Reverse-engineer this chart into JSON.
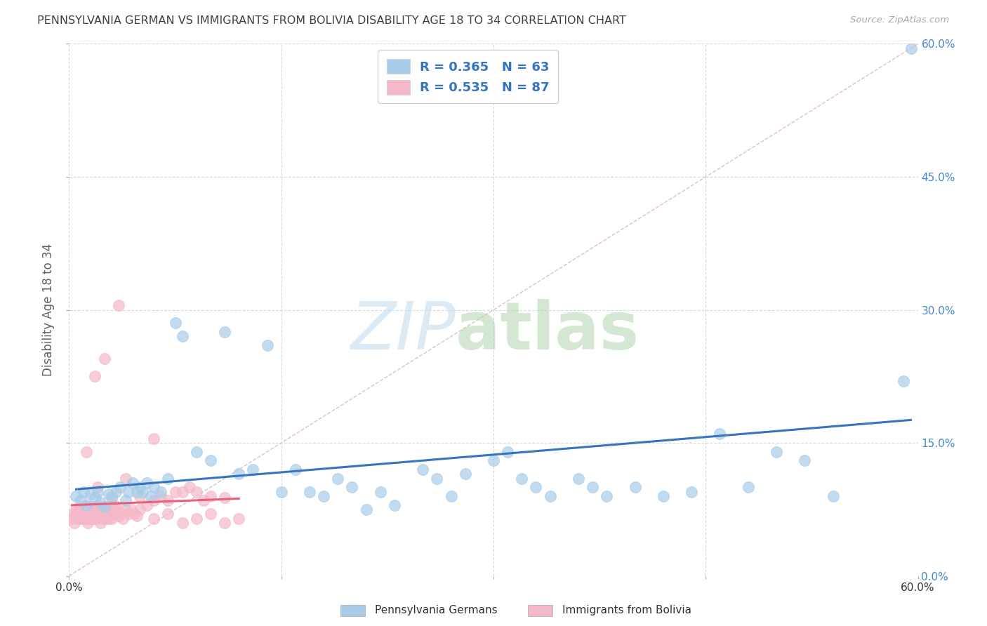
{
  "title": "PENNSYLVANIA GERMAN VS IMMIGRANTS FROM BOLIVIA DISABILITY AGE 18 TO 34 CORRELATION CHART",
  "source": "Source: ZipAtlas.com",
  "ylabel": "Disability Age 18 to 34",
  "xlim": [
    0.0,
    0.6
  ],
  "ylim": [
    0.0,
    0.6
  ],
  "xticks": [
    0.0,
    0.15,
    0.3,
    0.45,
    0.6
  ],
  "yticks": [
    0.0,
    0.15,
    0.3,
    0.45,
    0.6
  ],
  "blue_R": "0.365",
  "blue_N": "63",
  "pink_R": "0.535",
  "pink_N": "87",
  "blue_marker_color": "#a8cce8",
  "pink_marker_color": "#f5b8c8",
  "blue_line_color": "#3575c0",
  "pink_line_color": "#e8607a",
  "diagonal_color": "#e0c0c8",
  "legend_text_color": "#3575c0",
  "legend_label_blue": "Pennsylvania Germans",
  "legend_label_pink": "Immigrants from Bolivia",
  "background_color": "#ffffff",
  "grid_color": "#d8d8e0",
  "title_color": "#404040",
  "axis_label_color": "#606060",
  "right_tick_color": "#4488cc",
  "bottom_tick_color": "#333333",
  "blue_scatter_x": [
    0.005,
    0.008,
    0.01,
    0.012,
    0.015,
    0.018,
    0.02,
    0.022,
    0.025,
    0.028,
    0.03,
    0.033,
    0.036,
    0.04,
    0.042,
    0.045,
    0.048,
    0.05,
    0.052,
    0.055,
    0.058,
    0.06,
    0.065,
    0.07,
    0.075,
    0.08,
    0.09,
    0.1,
    0.11,
    0.12,
    0.13,
    0.14,
    0.15,
    0.16,
    0.17,
    0.18,
    0.19,
    0.2,
    0.21,
    0.22,
    0.23,
    0.25,
    0.26,
    0.27,
    0.28,
    0.3,
    0.31,
    0.32,
    0.33,
    0.34,
    0.36,
    0.37,
    0.38,
    0.4,
    0.42,
    0.44,
    0.46,
    0.48,
    0.5,
    0.52,
    0.54,
    0.59,
    0.595
  ],
  "blue_scatter_y": [
    0.09,
    0.085,
    0.095,
    0.08,
    0.092,
    0.088,
    0.095,
    0.083,
    0.078,
    0.092,
    0.088,
    0.095,
    0.1,
    0.085,
    0.095,
    0.105,
    0.095,
    0.1,
    0.095,
    0.105,
    0.09,
    0.1,
    0.095,
    0.11,
    0.285,
    0.27,
    0.14,
    0.13,
    0.275,
    0.115,
    0.12,
    0.26,
    0.095,
    0.12,
    0.095,
    0.09,
    0.11,
    0.1,
    0.075,
    0.095,
    0.08,
    0.12,
    0.11,
    0.09,
    0.115,
    0.13,
    0.14,
    0.11,
    0.1,
    0.09,
    0.11,
    0.1,
    0.09,
    0.1,
    0.09,
    0.095,
    0.16,
    0.1,
    0.14,
    0.13,
    0.09,
    0.22,
    0.595
  ],
  "pink_scatter_x": [
    0.002,
    0.003,
    0.004,
    0.005,
    0.005,
    0.006,
    0.006,
    0.007,
    0.007,
    0.008,
    0.008,
    0.009,
    0.01,
    0.01,
    0.011,
    0.011,
    0.012,
    0.012,
    0.013,
    0.013,
    0.014,
    0.014,
    0.015,
    0.015,
    0.016,
    0.016,
    0.017,
    0.017,
    0.018,
    0.018,
    0.019,
    0.02,
    0.02,
    0.021,
    0.022,
    0.022,
    0.023,
    0.024,
    0.024,
    0.025,
    0.025,
    0.026,
    0.026,
    0.027,
    0.027,
    0.028,
    0.03,
    0.03,
    0.032,
    0.032,
    0.034,
    0.035,
    0.036,
    0.038,
    0.04,
    0.042,
    0.044,
    0.046,
    0.048,
    0.05,
    0.055,
    0.06,
    0.065,
    0.07,
    0.075,
    0.08,
    0.085,
    0.09,
    0.095,
    0.1,
    0.11,
    0.012,
    0.018,
    0.025,
    0.035,
    0.02,
    0.03,
    0.04,
    0.05,
    0.06,
    0.07,
    0.08,
    0.09,
    0.1,
    0.11,
    0.12,
    0.06
  ],
  "pink_scatter_y": [
    0.065,
    0.07,
    0.06,
    0.075,
    0.068,
    0.072,
    0.065,
    0.078,
    0.07,
    0.065,
    0.075,
    0.068,
    0.072,
    0.065,
    0.078,
    0.07,
    0.065,
    0.075,
    0.06,
    0.078,
    0.068,
    0.072,
    0.065,
    0.078,
    0.07,
    0.065,
    0.075,
    0.068,
    0.072,
    0.065,
    0.078,
    0.07,
    0.065,
    0.075,
    0.06,
    0.078,
    0.068,
    0.072,
    0.065,
    0.078,
    0.07,
    0.065,
    0.075,
    0.068,
    0.072,
    0.065,
    0.075,
    0.065,
    0.08,
    0.07,
    0.075,
    0.068,
    0.072,
    0.065,
    0.075,
    0.07,
    0.075,
    0.07,
    0.068,
    0.075,
    0.08,
    0.085,
    0.09,
    0.085,
    0.095,
    0.095,
    0.1,
    0.095,
    0.085,
    0.09,
    0.088,
    0.14,
    0.225,
    0.245,
    0.305,
    0.1,
    0.09,
    0.11,
    0.09,
    0.065,
    0.07,
    0.06,
    0.065,
    0.07,
    0.06,
    0.065,
    0.155
  ]
}
